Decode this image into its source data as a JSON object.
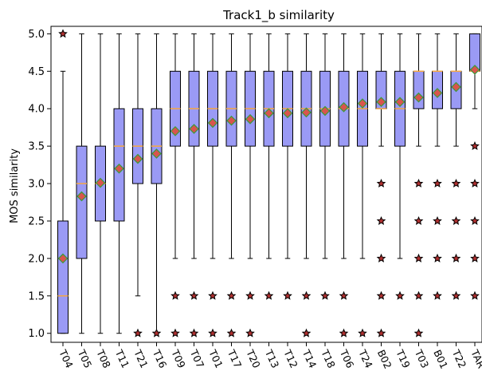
{
  "chart_data": {
    "type": "box",
    "title": "Track1_b similarity",
    "xlabel": "",
    "ylabel": "MOS similarity",
    "ylim": [
      0.88,
      5.1
    ],
    "yticks": [
      "1.0",
      "1.5",
      "2.0",
      "2.5",
      "3.0",
      "3.5",
      "4.0",
      "4.5",
      "5.0"
    ],
    "ytick_values": [
      1.0,
      1.5,
      2.0,
      2.5,
      3.0,
      3.5,
      4.0,
      4.5,
      5.0
    ],
    "grid": false,
    "colors": {
      "box_fill": "#9a9af5",
      "box_edge": "#000000",
      "median": "#f5a742",
      "mean_fill": "#d9544d",
      "mean_edge": "#3a9a3a",
      "flier_fill": "#b03030",
      "flier_edge": "#000000"
    },
    "categories": [
      "T04",
      "T05",
      "T08",
      "T11",
      "T21",
      "T16",
      "T09",
      "T07",
      "T01",
      "T17",
      "T20",
      "T13",
      "T12",
      "T14",
      "T18",
      "T06",
      "T24",
      "B02",
      "T19",
      "T03",
      "B01",
      "T22",
      "TAR"
    ],
    "boxes": [
      {
        "label": "T04",
        "whislo": 1.0,
        "q1": 1.0,
        "med": 1.5,
        "q3": 2.5,
        "whishi": 4.5,
        "mean": 2.0,
        "fliers": [
          5.0
        ]
      },
      {
        "label": "T05",
        "whislo": 1.0,
        "q1": 2.0,
        "med": 3.0,
        "q3": 3.5,
        "whishi": 5.0,
        "mean": 2.83,
        "fliers": []
      },
      {
        "label": "T08",
        "whislo": 1.0,
        "q1": 2.5,
        "med": 3.0,
        "q3": 3.5,
        "whishi": 5.0,
        "mean": 3.01,
        "fliers": []
      },
      {
        "label": "T11",
        "whislo": 1.0,
        "q1": 2.5,
        "med": 3.5,
        "q3": 4.0,
        "whishi": 5.0,
        "mean": 3.2,
        "fliers": []
      },
      {
        "label": "T21",
        "whislo": 1.5,
        "q1": 3.0,
        "med": 3.5,
        "q3": 4.0,
        "whishi": 5.0,
        "mean": 3.33,
        "fliers": [
          1.0
        ]
      },
      {
        "label": "T16",
        "whislo": 1.0,
        "q1": 3.0,
        "med": 3.5,
        "q3": 4.0,
        "whishi": 5.0,
        "mean": 3.4,
        "fliers": [
          1.0
        ]
      },
      {
        "label": "T09",
        "whislo": 2.0,
        "q1": 3.5,
        "med": 4.0,
        "q3": 4.5,
        "whishi": 5.0,
        "mean": 3.7,
        "fliers": [
          1.5,
          1.0
        ]
      },
      {
        "label": "T07",
        "whislo": 2.0,
        "q1": 3.5,
        "med": 4.0,
        "q3": 4.5,
        "whishi": 5.0,
        "mean": 3.73,
        "fliers": [
          1.5,
          1.0
        ]
      },
      {
        "label": "T01",
        "whislo": 2.0,
        "q1": 3.5,
        "med": 4.0,
        "q3": 4.5,
        "whishi": 5.0,
        "mean": 3.81,
        "fliers": [
          1.5,
          1.0
        ]
      },
      {
        "label": "T17",
        "whislo": 2.0,
        "q1": 3.5,
        "med": 4.0,
        "q3": 4.5,
        "whishi": 5.0,
        "mean": 3.84,
        "fliers": [
          1.5,
          1.0
        ]
      },
      {
        "label": "T20",
        "whislo": 2.0,
        "q1": 3.5,
        "med": 4.0,
        "q3": 4.5,
        "whishi": 5.0,
        "mean": 3.86,
        "fliers": [
          1.5,
          1.0
        ]
      },
      {
        "label": "T13",
        "whislo": 2.0,
        "q1": 3.5,
        "med": 4.0,
        "q3": 4.5,
        "whishi": 5.0,
        "mean": 3.94,
        "fliers": [
          1.5
        ]
      },
      {
        "label": "T12",
        "whislo": 2.0,
        "q1": 3.5,
        "med": 4.0,
        "q3": 4.5,
        "whishi": 5.0,
        "mean": 3.94,
        "fliers": [
          1.5
        ]
      },
      {
        "label": "T14",
        "whislo": 2.0,
        "q1": 3.5,
        "med": 4.0,
        "q3": 4.5,
        "whishi": 5.0,
        "mean": 3.95,
        "fliers": [
          1.5,
          1.0
        ]
      },
      {
        "label": "T18",
        "whislo": 2.0,
        "q1": 3.5,
        "med": 4.0,
        "q3": 4.5,
        "whishi": 5.0,
        "mean": 3.97,
        "fliers": [
          1.5
        ]
      },
      {
        "label": "T06",
        "whislo": 2.0,
        "q1": 3.5,
        "med": 4.0,
        "q3": 4.5,
        "whishi": 5.0,
        "mean": 4.02,
        "fliers": [
          1.5,
          1.0
        ]
      },
      {
        "label": "T24",
        "whislo": 2.0,
        "q1": 3.5,
        "med": 4.0,
        "q3": 4.5,
        "whishi": 5.0,
        "mean": 4.07,
        "fliers": [
          1.0
        ]
      },
      {
        "label": "B02",
        "whislo": 3.5,
        "q1": 4.0,
        "med": 4.0,
        "q3": 4.5,
        "whishi": 5.0,
        "mean": 4.09,
        "fliers": [
          3.0,
          2.5,
          2.0,
          1.5,
          1.0
        ]
      },
      {
        "label": "T19",
        "whislo": 2.0,
        "q1": 3.5,
        "med": 4.0,
        "q3": 4.5,
        "whishi": 5.0,
        "mean": 4.09,
        "fliers": [
          1.5
        ]
      },
      {
        "label": "T03",
        "whislo": 3.5,
        "q1": 4.0,
        "med": 4.5,
        "q3": 4.5,
        "whishi": 5.0,
        "mean": 4.15,
        "fliers": [
          3.0,
          2.5,
          2.0,
          1.5,
          1.0
        ]
      },
      {
        "label": "B01",
        "whislo": 3.5,
        "q1": 4.0,
        "med": 4.5,
        "q3": 4.5,
        "whishi": 5.0,
        "mean": 4.21,
        "fliers": [
          3.0,
          2.5,
          2.0,
          1.5
        ]
      },
      {
        "label": "T22",
        "whislo": 3.5,
        "q1": 4.0,
        "med": 4.5,
        "q3": 4.5,
        "whishi": 5.0,
        "mean": 4.29,
        "fliers": [
          3.0,
          2.5,
          2.0,
          1.5
        ]
      },
      {
        "label": "TAR",
        "whislo": 4.0,
        "q1": 4.5,
        "med": 4.5,
        "q3": 5.0,
        "whishi": 5.0,
        "mean": 4.52,
        "fliers": [
          3.5,
          3.0,
          2.5,
          2.0,
          1.5
        ]
      }
    ]
  }
}
